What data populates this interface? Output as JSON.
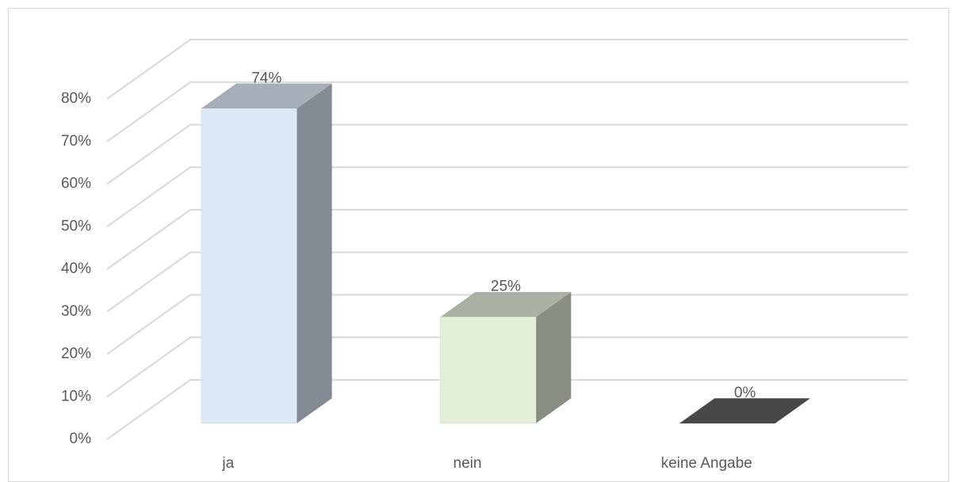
{
  "chart_data": {
    "type": "bar3d",
    "categories": [
      "ja",
      "nein",
      "keine Angabe"
    ],
    "values": [
      74,
      25,
      0
    ],
    "value_labels": [
      "74%",
      "25%",
      "0%"
    ],
    "colors": [
      "#dde8f6",
      "#e3efd9",
      "#606060"
    ],
    "ylim": [
      0,
      80
    ],
    "yticks": [
      {
        "value": 0,
        "label": "0%"
      },
      {
        "value": 10,
        "label": "10%"
      },
      {
        "value": 20,
        "label": "20%"
      },
      {
        "value": 30,
        "label": "30%"
      },
      {
        "value": 40,
        "label": "40%"
      },
      {
        "value": 50,
        "label": "50%"
      },
      {
        "value": 60,
        "label": "60%"
      },
      {
        "value": 70,
        "label": "70%"
      },
      {
        "value": 80,
        "label": "80%"
      }
    ],
    "grid": true
  }
}
